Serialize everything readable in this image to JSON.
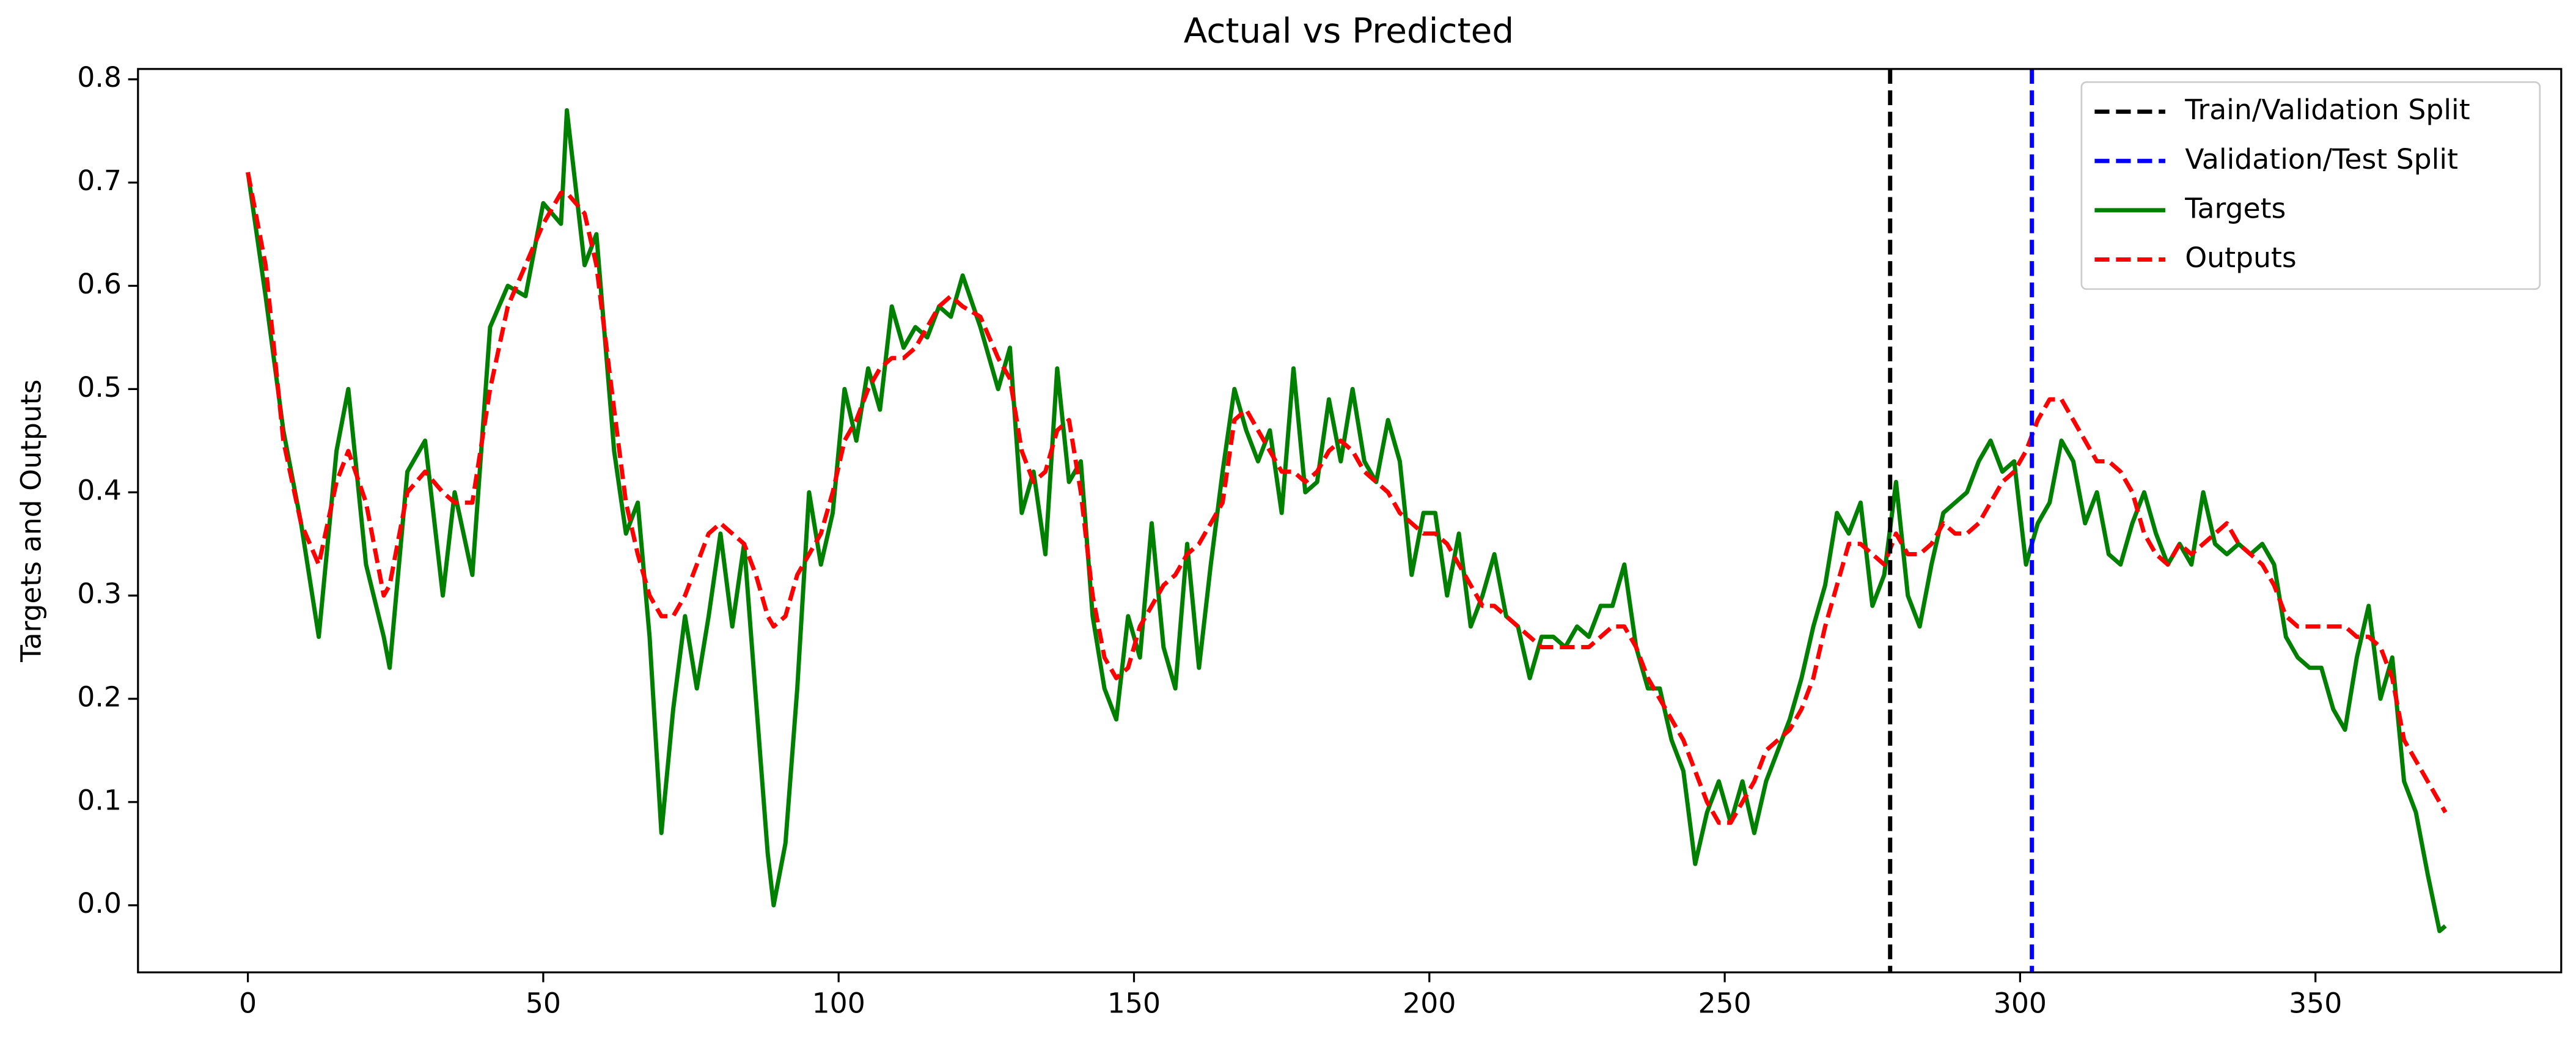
{
  "chart_data": {
    "type": "line",
    "title": "Actual vs Predicted",
    "y_label": "Targets and Outputs",
    "x": [
      0,
      3,
      6,
      9,
      12,
      15,
      17,
      20,
      23,
      24,
      27,
      30,
      33,
      35,
      38,
      41,
      44,
      47,
      50,
      53,
      54,
      57,
      59,
      62,
      64,
      66,
      68,
      70,
      72,
      74,
      76,
      78,
      80,
      82,
      84,
      86,
      88,
      89,
      91,
      93,
      95,
      97,
      99,
      101,
      103,
      105,
      107,
      109,
      111,
      113,
      115,
      117,
      119,
      121,
      124,
      127,
      129,
      131,
      133,
      135,
      137,
      139,
      141,
      143,
      145,
      147,
      149,
      151,
      153,
      155,
      157,
      159,
      161,
      163,
      165,
      167,
      169,
      171,
      173,
      175,
      177,
      179,
      181,
      183,
      185,
      187,
      189,
      191,
      193,
      195,
      197,
      199,
      201,
      203,
      205,
      207,
      209,
      211,
      213,
      215,
      217,
      219,
      221,
      223,
      225,
      227,
      229,
      231,
      233,
      235,
      237,
      239,
      241,
      243,
      245,
      247,
      249,
      251,
      253,
      255,
      257,
      259,
      261,
      263,
      265,
      267,
      269,
      271,
      273,
      275,
      277,
      279,
      281,
      283,
      285,
      287,
      289,
      291,
      293,
      295,
      297,
      299,
      301,
      303,
      305,
      307,
      309,
      311,
      313,
      315,
      317,
      319,
      321,
      323,
      325,
      327,
      329,
      331,
      333,
      335,
      337,
      339,
      341,
      343,
      345,
      347,
      349,
      351,
      353,
      355,
      357,
      359,
      361,
      363,
      365,
      367,
      369,
      371,
      372
    ],
    "series": [
      {
        "name": "Targets",
        "color": "green",
        "dashed": false,
        "values": [
          0.71,
          0.59,
          0.46,
          0.37,
          0.26,
          0.44,
          0.5,
          0.33,
          0.26,
          0.23,
          0.42,
          0.45,
          0.3,
          0.4,
          0.32,
          0.56,
          0.6,
          0.59,
          0.68,
          0.66,
          0.77,
          0.62,
          0.65,
          0.44,
          0.36,
          0.39,
          0.26,
          0.07,
          0.19,
          0.28,
          0.21,
          0.28,
          0.36,
          0.27,
          0.35,
          0.2,
          0.05,
          0.0,
          0.06,
          0.21,
          0.4,
          0.33,
          0.38,
          0.5,
          0.45,
          0.52,
          0.48,
          0.58,
          0.54,
          0.56,
          0.55,
          0.58,
          0.57,
          0.61,
          0.56,
          0.5,
          0.54,
          0.38,
          0.42,
          0.34,
          0.52,
          0.41,
          0.43,
          0.28,
          0.21,
          0.18,
          0.28,
          0.24,
          0.37,
          0.25,
          0.21,
          0.35,
          0.23,
          0.33,
          0.42,
          0.5,
          0.46,
          0.43,
          0.46,
          0.38,
          0.52,
          0.4,
          0.41,
          0.49,
          0.43,
          0.5,
          0.43,
          0.41,
          0.47,
          0.43,
          0.32,
          0.38,
          0.38,
          0.3,
          0.36,
          0.27,
          0.3,
          0.34,
          0.28,
          0.27,
          0.22,
          0.26,
          0.26,
          0.25,
          0.27,
          0.26,
          0.29,
          0.29,
          0.33,
          0.25,
          0.21,
          0.21,
          0.16,
          0.13,
          0.04,
          0.09,
          0.12,
          0.08,
          0.12,
          0.07,
          0.12,
          0.15,
          0.18,
          0.22,
          0.27,
          0.31,
          0.38,
          0.36,
          0.39,
          0.29,
          0.32,
          0.41,
          0.3,
          0.27,
          0.33,
          0.38,
          0.39,
          0.4,
          0.43,
          0.45,
          0.42,
          0.43,
          0.33,
          0.37,
          0.39,
          0.45,
          0.43,
          0.37,
          0.4,
          0.34,
          0.33,
          0.37,
          0.4,
          0.36,
          0.33,
          0.35,
          0.33,
          0.4,
          0.35,
          0.34,
          0.35,
          0.34,
          0.35,
          0.33,
          0.26,
          0.24,
          0.23,
          0.23,
          0.19,
          0.17,
          0.24,
          0.29,
          0.2,
          0.24,
          0.12,
          0.09,
          0.03,
          -0.025,
          -0.02
        ]
      },
      {
        "name": "Outputs",
        "color": "red",
        "dashed": true,
        "values": [
          0.71,
          0.62,
          0.45,
          0.37,
          0.33,
          0.41,
          0.44,
          0.39,
          0.3,
          0.31,
          0.4,
          0.42,
          0.4,
          0.39,
          0.39,
          0.5,
          0.58,
          0.62,
          0.66,
          0.69,
          0.69,
          0.67,
          0.62,
          0.48,
          0.39,
          0.34,
          0.3,
          0.28,
          0.28,
          0.3,
          0.33,
          0.36,
          0.37,
          0.36,
          0.35,
          0.32,
          0.28,
          0.27,
          0.28,
          0.32,
          0.34,
          0.36,
          0.4,
          0.45,
          0.47,
          0.5,
          0.52,
          0.53,
          0.53,
          0.54,
          0.56,
          0.58,
          0.59,
          0.58,
          0.57,
          0.53,
          0.51,
          0.44,
          0.41,
          0.42,
          0.46,
          0.47,
          0.4,
          0.3,
          0.24,
          0.22,
          0.23,
          0.27,
          0.29,
          0.31,
          0.32,
          0.34,
          0.35,
          0.37,
          0.39,
          0.47,
          0.48,
          0.46,
          0.44,
          0.42,
          0.42,
          0.41,
          0.42,
          0.44,
          0.45,
          0.44,
          0.42,
          0.41,
          0.4,
          0.38,
          0.37,
          0.36,
          0.36,
          0.35,
          0.33,
          0.31,
          0.29,
          0.29,
          0.28,
          0.27,
          0.26,
          0.25,
          0.25,
          0.25,
          0.25,
          0.25,
          0.26,
          0.27,
          0.27,
          0.25,
          0.22,
          0.2,
          0.18,
          0.16,
          0.13,
          0.1,
          0.08,
          0.08,
          0.1,
          0.12,
          0.15,
          0.16,
          0.17,
          0.19,
          0.22,
          0.27,
          0.31,
          0.35,
          0.35,
          0.34,
          0.33,
          0.36,
          0.34,
          0.34,
          0.35,
          0.37,
          0.36,
          0.36,
          0.37,
          0.39,
          0.41,
          0.42,
          0.44,
          0.47,
          0.49,
          0.49,
          0.47,
          0.45,
          0.43,
          0.43,
          0.42,
          0.4,
          0.36,
          0.34,
          0.33,
          0.35,
          0.34,
          0.35,
          0.36,
          0.37,
          0.35,
          0.34,
          0.33,
          0.31,
          0.28,
          0.27,
          0.27,
          0.27,
          0.27,
          0.27,
          0.26,
          0.26,
          0.25,
          0.22,
          0.16,
          0.14,
          0.12,
          0.1,
          0.09
        ]
      }
    ],
    "vlines": [
      {
        "name": "Train/Validation Split",
        "x": 278,
        "color": "black"
      },
      {
        "name": "Validation/Test Split",
        "x": 302,
        "color": "blue"
      }
    ],
    "xlim": [
      -18.6,
      391.6
    ],
    "ylim": [
      -0.065,
      0.81
    ],
    "xticks": [
      0,
      50,
      100,
      150,
      200,
      250,
      300,
      350
    ],
    "yticks": [
      {
        "value": 0,
        "label": "0.0"
      },
      0.1,
      0.2,
      0.3,
      0.4,
      0.5,
      0.6,
      0.7,
      0.8
    ],
    "legend": "upper right"
  }
}
